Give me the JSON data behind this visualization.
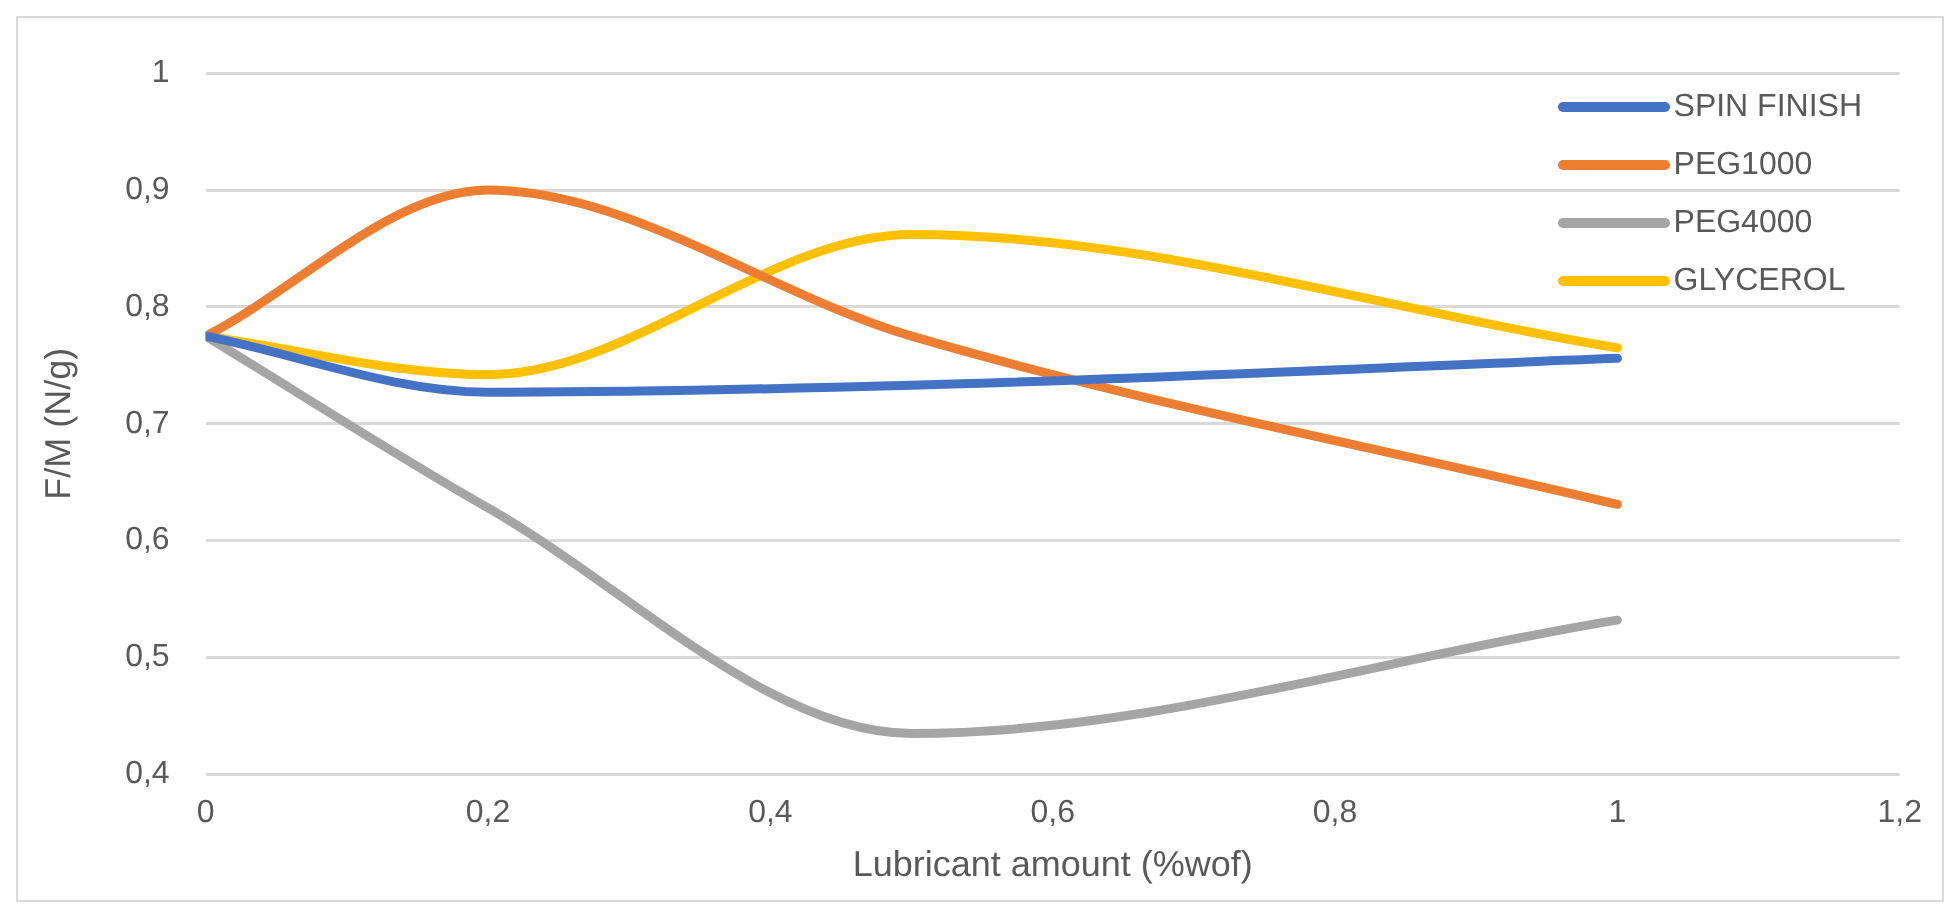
{
  "chart_data": {
    "type": "line",
    "xlabel": "Lubricant amount (%wof)",
    "ylabel": "F/M (N/g)",
    "x": [
      0,
      0.2,
      0.5,
      1
    ],
    "series": [
      {
        "name": "SPIN FINISH",
        "color": "#4472c4",
        "values": [
          0.775,
          0.727,
          0.733,
          0.756
        ]
      },
      {
        "name": "PEG1000",
        "color": "#ed7d31",
        "values": [
          0.775,
          0.9,
          0.775,
          0.631
        ]
      },
      {
        "name": "PEG4000",
        "color": "#a5a5a5",
        "values": [
          0.775,
          0.628,
          0.435,
          0.532
        ]
      },
      {
        "name": "GLYCEROL",
        "color": "#ffc000",
        "values": [
          0.775,
          0.742,
          0.862,
          0.765
        ]
      }
    ],
    "xlim": [
      0,
      1.2
    ],
    "xticks": [
      0,
      {
        "value": 0.2,
        "label": "0,2"
      },
      {
        "value": 0.4,
        "label": "0,4"
      },
      {
        "value": 0.6,
        "label": "0,6"
      },
      {
        "value": 0.8,
        "label": "0,8"
      },
      1,
      {
        "value": 1.2,
        "label": "1,2"
      }
    ],
    "ylim": [
      0.4,
      1
    ],
    "yticks": [
      {
        "value": 0.4,
        "label": "0,4"
      },
      {
        "value": 0.5,
        "label": "0,5"
      },
      {
        "value": 0.6,
        "label": "0,6"
      },
      {
        "value": 0.7,
        "label": "0,7"
      },
      {
        "value": 0.8,
        "label": "0,8"
      },
      {
        "value": 0.9,
        "label": "0,9"
      },
      1
    ],
    "grid": "y",
    "legend": "top right",
    "marker": "none",
    "line_style": "solid"
  }
}
